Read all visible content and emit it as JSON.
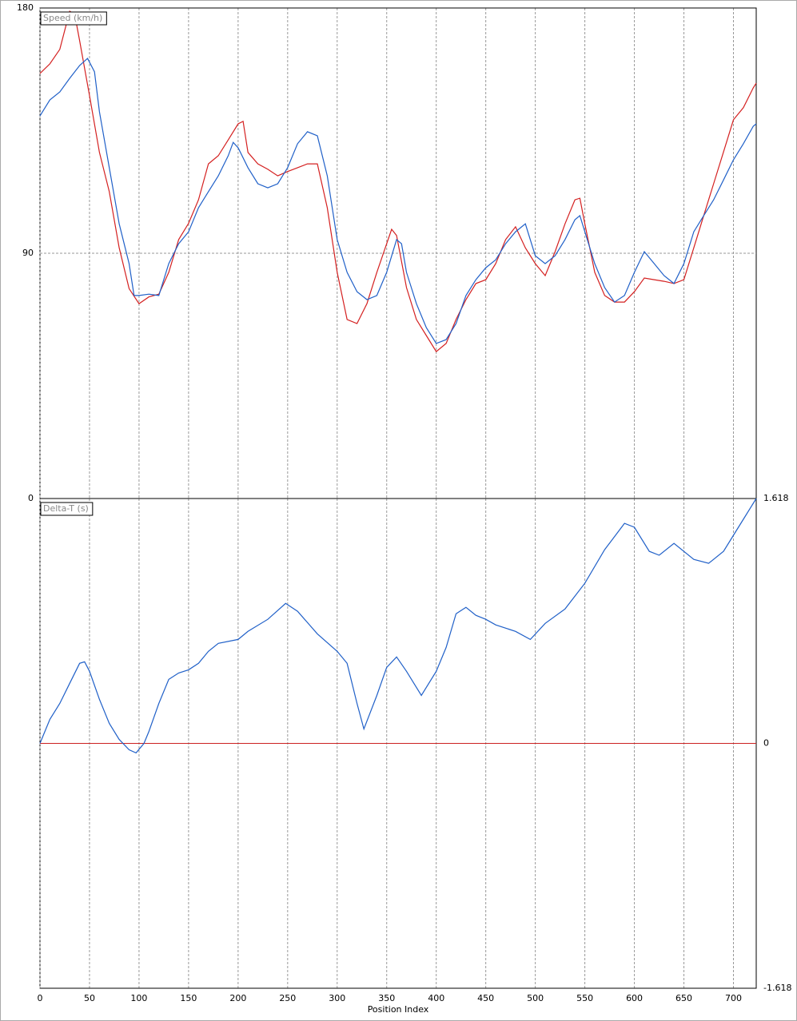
{
  "chart_data": [
    {
      "type": "line",
      "title": "Speed (km/h)",
      "ytick_side": "left",
      "grid": true,
      "xlim": [
        0,
        723
      ],
      "xticks": [
        0,
        50,
        100,
        150,
        200,
        250,
        300,
        350,
        400,
        450,
        500,
        550,
        600,
        650,
        700
      ],
      "ylim": [
        0,
        180
      ],
      "yticks": [
        0,
        90,
        180
      ],
      "series": [
        {
          "color": "#d42020",
          "x": [
            0,
            10,
            20,
            30,
            35,
            40,
            50,
            60,
            70,
            80,
            90,
            100,
            110,
            120,
            130,
            140,
            150,
            160,
            170,
            180,
            190,
            200,
            205,
            210,
            220,
            230,
            240,
            250,
            260,
            270,
            280,
            290,
            300,
            310,
            320,
            330,
            340,
            350,
            355,
            360,
            370,
            380,
            390,
            400,
            410,
            420,
            430,
            440,
            450,
            460,
            470,
            480,
            490,
            500,
            510,
            520,
            530,
            540,
            545,
            550,
            560,
            570,
            580,
            590,
            600,
            610,
            620,
            630,
            640,
            650,
            660,
            670,
            680,
            690,
            700,
            710,
            720,
            723
          ],
          "values": [
            156,
            159.5,
            164.8,
            178.8,
            177.7,
            168,
            147.8,
            127,
            112.6,
            92,
            77,
            71.5,
            74,
            75,
            83,
            95,
            101,
            109.6,
            122.8,
            125.8,
            131.6,
            137.5,
            138.4,
            127,
            122.8,
            120.8,
            118.4,
            120,
            121.4,
            122.8,
            122.8,
            106.7,
            83,
            65.7,
            64.2,
            71.5,
            83,
            93.5,
            98.8,
            96.5,
            77.4,
            65.7,
            59.8,
            53.9,
            56.9,
            65.7,
            73,
            78.9,
            80.3,
            86.2,
            95,
            99.7,
            92,
            86.2,
            81.8,
            90.6,
            100.8,
            109.6,
            110.2,
            100.8,
            83,
            74.5,
            72.1,
            72.1,
            75.9,
            80.9,
            80.3,
            79.7,
            78.9,
            80.3,
            92,
            103.8,
            115.5,
            127.2,
            139,
            143.4,
            150.7,
            152.4
          ]
        },
        {
          "color": "#2060c8",
          "x": [
            0,
            10,
            20,
            30,
            40,
            48,
            55,
            60,
            70,
            80,
            90,
            95,
            100,
            110,
            120,
            130,
            140,
            150,
            160,
            170,
            180,
            190,
            195,
            200,
            210,
            220,
            230,
            240,
            250,
            260,
            270,
            280,
            290,
            300,
            310,
            320,
            330,
            340,
            350,
            360,
            365,
            370,
            380,
            390,
            400,
            410,
            420,
            430,
            440,
            450,
            460,
            470,
            480,
            490,
            500,
            510,
            520,
            530,
            540,
            545,
            550,
            560,
            570,
            580,
            590,
            600,
            610,
            620,
            630,
            640,
            650,
            660,
            670,
            680,
            690,
            700,
            710,
            720,
            723
          ],
          "values": [
            140.4,
            146.3,
            149.2,
            154.2,
            158.9,
            161.5,
            156.6,
            141.9,
            121.4,
            100.8,
            86.2,
            74.5,
            74.5,
            75,
            74.5,
            86.2,
            93.5,
            97.9,
            106.7,
            112.6,
            118.4,
            125.8,
            130.7,
            128.7,
            121.4,
            115.5,
            114,
            115.5,
            121.4,
            130.2,
            134.6,
            133.1,
            118.4,
            95,
            83,
            75.9,
            73,
            74.5,
            83,
            95,
            93.5,
            83,
            71.5,
            62.7,
            56.9,
            58.3,
            64.2,
            74.5,
            80.3,
            84.7,
            87.6,
            93.5,
            97.9,
            100.8,
            89.1,
            86.2,
            89.1,
            95,
            102.3,
            103.8,
            97.9,
            86.2,
            77.4,
            72.1,
            74.5,
            83,
            90.6,
            86.2,
            81.8,
            78.9,
            86.2,
            97.9,
            103.8,
            109.6,
            116.9,
            124.3,
            130.2,
            136.6,
            137.5
          ]
        }
      ]
    },
    {
      "type": "line",
      "title": "Delta-T (s)",
      "ytick_side": "right",
      "grid": true,
      "xlabel": "Position Index",
      "zero_line_color": "#cc2020",
      "xlim": [
        0,
        723
      ],
      "xticks": [
        0,
        50,
        100,
        150,
        200,
        250,
        300,
        350,
        400,
        450,
        500,
        550,
        600,
        650,
        700
      ],
      "ylim": [
        -1.618,
        1.618
      ],
      "yticks": [
        -1.618,
        0,
        1.618
      ],
      "series": [
        {
          "color": "#2060c8",
          "x": [
            0,
            10,
            20,
            30,
            40,
            45,
            50,
            60,
            70,
            80,
            90,
            97,
            105,
            110,
            120,
            130,
            140,
            150,
            160,
            170,
            180,
            200,
            210,
            230,
            248,
            260,
            280,
            300,
            310,
            320,
            327,
            340,
            350,
            360,
            370,
            385,
            400,
            410,
            420,
            430,
            440,
            450,
            460,
            480,
            495,
            510,
            530,
            550,
            570,
            590,
            600,
            615,
            625,
            640,
            660,
            675,
            690,
            700,
            710,
            723
          ],
          "values": [
            0,
            0.159,
            0.264,
            0.397,
            0.529,
            0.539,
            0.476,
            0.291,
            0.132,
            0.026,
            -0.042,
            -0.063,
            0,
            0.079,
            0.264,
            0.423,
            0.465,
            0.486,
            0.529,
            0.608,
            0.661,
            0.687,
            0.74,
            0.82,
            0.925,
            0.873,
            0.724,
            0.608,
            0.529,
            0.264,
            0.095,
            0.317,
            0.502,
            0.571,
            0.476,
            0.317,
            0.476,
            0.634,
            0.857,
            0.899,
            0.846,
            0.82,
            0.783,
            0.74,
            0.687,
            0.793,
            0.888,
            1.058,
            1.28,
            1.454,
            1.428,
            1.269,
            1.243,
            1.322,
            1.216,
            1.19,
            1.269,
            1.375,
            1.481,
            1.618
          ]
        }
      ]
    }
  ]
}
